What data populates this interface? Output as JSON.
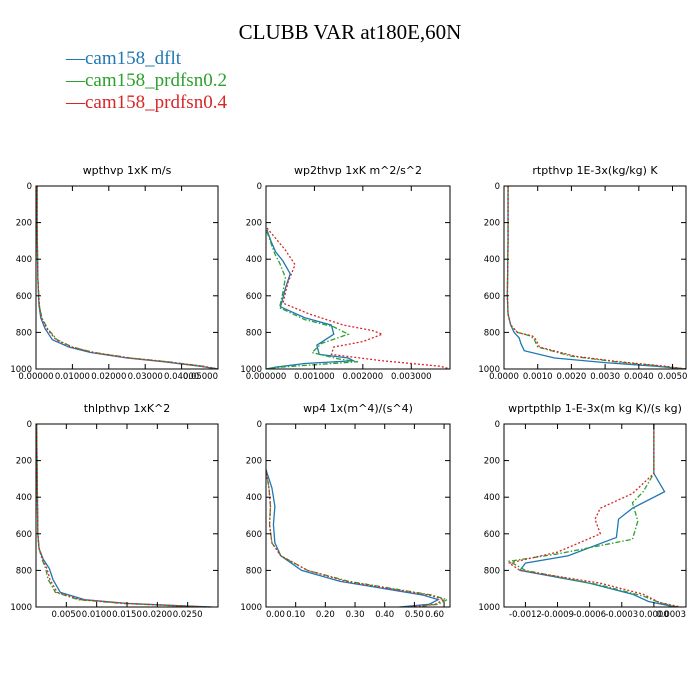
{
  "title": "CLUBB VAR at180E,60N",
  "legend": [
    {
      "name": "cam158_dflt",
      "color": "#1f77b4"
    },
    {
      "name": "cam158_prdfsn0.2",
      "color": "#2ca02c"
    },
    {
      "name": "cam158_prdfsn0.4",
      "color": "#d62728"
    }
  ],
  "chart_data": [
    {
      "type": "line",
      "title": "wpthvp   1xK m/s",
      "xlim": [
        0,
        0.05
      ],
      "ylim": [
        1000,
        0
      ],
      "x_ticks": [
        "0.00000",
        "0.01000",
        "0.02000",
        "0.03000",
        "0.04000",
        "0.05000"
      ],
      "x_tick_values": [
        0,
        0.01,
        0.02,
        0.03,
        0.04,
        0.05
      ],
      "y_ticks": [
        "0",
        "200",
        "400",
        "600",
        "800",
        "1000"
      ],
      "y_tick_values": [
        0,
        200,
        400,
        600,
        800,
        1000
      ],
      "series": [
        {
          "color": "#1f77b4",
          "dash": "solid",
          "x": [
            0.0003,
            0.0003,
            0.0005,
            0.0008,
            0.0013,
            0.0025,
            0.0045,
            0.009,
            0.015,
            0.025,
            0.035,
            0.045,
            0.05
          ],
          "y": [
            0,
            200,
            500,
            650,
            720,
            780,
            840,
            880,
            910,
            940,
            960,
            985,
            1000
          ]
        },
        {
          "color": "#2ca02c",
          "dash": "dashed",
          "x": [
            0.0003,
            0.0003,
            0.0005,
            0.0009,
            0.0016,
            0.0032,
            0.0058,
            0.01,
            0.016,
            0.026,
            0.036,
            0.046,
            0.05
          ],
          "y": [
            0,
            200,
            500,
            650,
            720,
            780,
            840,
            880,
            910,
            940,
            960,
            985,
            1000
          ]
        },
        {
          "color": "#d62728",
          "dash": "dotted",
          "x": [
            0.0003,
            0.0003,
            0.0005,
            0.0009,
            0.0015,
            0.003,
            0.0055,
            0.0098,
            0.0158,
            0.0258,
            0.0358,
            0.0458,
            0.05
          ],
          "y": [
            0,
            200,
            500,
            650,
            720,
            780,
            840,
            880,
            910,
            940,
            960,
            985,
            1000
          ]
        }
      ]
    },
    {
      "type": "line",
      "title": "wp2thvp   1xK m^2/s^2",
      "xlim": [
        0,
        0.0038
      ],
      "ylim": [
        1000,
        0
      ],
      "x_ticks": [
        "0.000000",
        "0.001000",
        "0.002000",
        "0.003000"
      ],
      "x_tick_values": [
        0,
        0.001,
        0.002,
        0.003
      ],
      "y_ticks": [
        "0",
        "200",
        "400",
        "600",
        "800",
        "1000"
      ],
      "y_tick_values": [
        0,
        200,
        400,
        600,
        800,
        1000
      ],
      "series": [
        {
          "color": "#1f77b4",
          "dash": "solid",
          "x": [
            2e-05,
            0.0001,
            0.0002,
            0.00035,
            0.0005,
            0.0004,
            0.0003,
            0.0008,
            0.00135,
            0.0014,
            0.00105,
            0.0011,
            0.0017,
            0.0018,
            0.0008,
            0.0002,
            0
          ],
          "y": [
            240,
            300,
            360,
            410,
            480,
            560,
            660,
            720,
            760,
            810,
            870,
            920,
            940,
            955,
            970,
            990,
            1000
          ]
        },
        {
          "color": "#2ca02c",
          "dash": "dashed",
          "x": [
            2e-05,
            0.0001,
            0.00018,
            0.00028,
            0.0004,
            0.00035,
            0.00028,
            0.0008,
            0.0014,
            0.0017,
            0.00115,
            0.00095,
            0.0015,
            0.0019,
            0.0011,
            0.0003,
            0
          ],
          "y": [
            250,
            310,
            370,
            420,
            500,
            580,
            665,
            730,
            770,
            810,
            860,
            910,
            945,
            960,
            975,
            990,
            1000
          ]
        },
        {
          "color": "#d62728",
          "dash": "dotted",
          "x": [
            2e-05,
            0.00018,
            0.0004,
            0.0006,
            0.00045,
            0.00035,
            0.0009,
            0.0016,
            0.0022,
            0.0024,
            0.002,
            0.0014,
            0.00135,
            0.0024,
            0.0036,
            0.0038
          ],
          "y": [
            230,
            280,
            350,
            430,
            530,
            640,
            700,
            760,
            790,
            810,
            850,
            880,
            920,
            955,
            985,
            1000
          ]
        }
      ]
    },
    {
      "type": "line",
      "title": "rtpthvp   1E-3x(kg/kg) K",
      "xlim": [
        0,
        0.0054
      ],
      "ylim": [
        1000,
        0
      ],
      "x_ticks": [
        "0.0000",
        "0.0010",
        "0.0020",
        "0.0030",
        "0.0040",
        "0.0050"
      ],
      "x_tick_values": [
        0,
        0.001,
        0.002,
        0.003,
        0.004,
        0.005
      ],
      "y_ticks": [
        "0",
        "200",
        "400",
        "600",
        "800",
        "1000"
      ],
      "y_tick_values": [
        0,
        200,
        400,
        600,
        800,
        1000
      ],
      "series": [
        {
          "color": "#1f77b4",
          "dash": "solid",
          "x": [
            0.00012,
            0.00012,
            0.0001,
            0.00012,
            0.0002,
            0.0003,
            0.00045,
            0.0005,
            0.0006,
            0.0015,
            0.003,
            0.0045,
            0.0054
          ],
          "y": [
            0,
            300,
            600,
            700,
            760,
            800,
            830,
            860,
            900,
            940,
            965,
            985,
            1000
          ]
        },
        {
          "color": "#2ca02c",
          "dash": "dashed",
          "x": [
            0.00012,
            0.00012,
            0.0001,
            0.00012,
            0.0002,
            0.0004,
            0.0008,
            0.0009,
            0.001,
            0.002,
            0.0033,
            0.0047,
            0.0054
          ],
          "y": [
            0,
            300,
            600,
            700,
            760,
            800,
            820,
            840,
            880,
            930,
            960,
            985,
            1000
          ]
        },
        {
          "color": "#d62728",
          "dash": "dotted",
          "x": [
            0.00012,
            0.00012,
            0.0001,
            0.00012,
            0.0002,
            0.0004,
            0.00085,
            0.00095,
            0.00105,
            0.0021,
            0.0034,
            0.0048,
            0.0054
          ],
          "y": [
            0,
            300,
            600,
            700,
            760,
            800,
            820,
            840,
            880,
            930,
            960,
            985,
            1000
          ]
        }
      ]
    },
    {
      "type": "line",
      "title": "thlpthvp   1xK^2",
      "xlim": [
        0,
        0.03
      ],
      "ylim": [
        1000,
        0
      ],
      "x_ticks": [
        "0.0050",
        "0.0100",
        "0.0150",
        "0.0200",
        "0.0250"
      ],
      "x_tick_values": [
        0.005,
        0.01,
        0.015,
        0.02,
        0.025
      ],
      "y_ticks": [
        "0",
        "200",
        "400",
        "600",
        "800",
        "1000"
      ],
      "y_tick_values": [
        0,
        200,
        400,
        600,
        800,
        1000
      ],
      "series": [
        {
          "color": "#1f77b4",
          "dash": "solid",
          "x": [
            0.0001,
            0.0002,
            0.0003,
            0.0005,
            0.0012,
            0.0022,
            0.0028,
            0.004,
            0.008,
            0.015,
            0.023,
            0.029
          ],
          "y": [
            0,
            300,
            600,
            680,
            740,
            790,
            850,
            920,
            960,
            980,
            992,
            1000
          ]
        },
        {
          "color": "#2ca02c",
          "dash": "dashed",
          "x": [
            0.0001,
            0.0002,
            0.0003,
            0.0005,
            0.001,
            0.0016,
            0.002,
            0.0032,
            0.007,
            0.014,
            0.022,
            0.028
          ],
          "y": [
            0,
            300,
            600,
            680,
            740,
            790,
            850,
            920,
            960,
            980,
            992,
            1000
          ]
        },
        {
          "color": "#d62728",
          "dash": "dotted",
          "x": [
            0.0001,
            0.0002,
            0.0003,
            0.0005,
            0.0011,
            0.0018,
            0.0023,
            0.0035,
            0.0074,
            0.0145,
            0.0225,
            0.0285
          ],
          "y": [
            0,
            300,
            600,
            680,
            740,
            790,
            850,
            920,
            960,
            980,
            992,
            1000
          ]
        }
      ]
    },
    {
      "type": "line",
      "title": "wp4   1x(m^4)/(s^4)",
      "xlim": [
        0,
        0.62
      ],
      "ylim": [
        1000,
        0
      ],
      "x_ticks": [
        "0.00",
        "0.10",
        "0.20",
        "0.30",
        "0.40",
        "0.50",
        "0.60"
      ],
      "x_tick_values": [
        0,
        0.1,
        0.2,
        0.3,
        0.4,
        0.5,
        0.6
      ],
      "y_ticks": [
        "0",
        "200",
        "400",
        "600",
        "800",
        "1000"
      ],
      "y_tick_values": [
        0,
        200,
        400,
        600,
        800,
        1000
      ],
      "series": [
        {
          "color": "#1f77b4",
          "dash": "solid",
          "x": [
            0.0,
            0.02,
            0.03,
            0.025,
            0.03,
            0.05,
            0.12,
            0.25,
            0.4,
            0.53,
            0.58,
            0.55,
            0.45
          ],
          "y": [
            250,
            350,
            450,
            550,
            650,
            720,
            800,
            860,
            900,
            935,
            960,
            985,
            1000
          ]
        },
        {
          "color": "#2ca02c",
          "dash": "dashed",
          "x": [
            0.0,
            0.01,
            0.015,
            0.012,
            0.02,
            0.05,
            0.14,
            0.28,
            0.43,
            0.56,
            0.61,
            0.58,
            0.5
          ],
          "y": [
            250,
            350,
            450,
            550,
            650,
            720,
            800,
            860,
            900,
            935,
            960,
            985,
            1000
          ]
        },
        {
          "color": "#d62728",
          "dash": "dotted",
          "x": [
            0.0,
            0.01,
            0.015,
            0.012,
            0.02,
            0.05,
            0.14,
            0.27,
            0.42,
            0.55,
            0.6,
            0.57,
            0.48
          ],
          "y": [
            250,
            350,
            450,
            550,
            650,
            720,
            800,
            860,
            900,
            935,
            960,
            985,
            1000
          ]
        }
      ]
    },
    {
      "type": "line",
      "title": "wprtpthlp   1-E-3x(m kg K)/(s kg)",
      "xlim": [
        -0.0014,
        0.0003
      ],
      "ylim": [
        1000,
        0
      ],
      "x_ticks": [
        "-0.0012",
        "-0.0009",
        "-0.0006",
        "-0.0003",
        "0.0000",
        "0.0003"
      ],
      "x_tick_values": [
        -0.0012,
        -0.0009,
        -0.0006,
        -0.0003,
        0,
        0.0003
      ],
      "y_ticks": [
        "0",
        "200",
        "400",
        "600",
        "800",
        "1000"
      ],
      "y_tick_values": [
        0,
        200,
        400,
        600,
        800,
        1000
      ],
      "series": [
        {
          "color": "#1f77b4",
          "dash": "solid",
          "x": [
            0,
            0,
            0.0001,
            -0.0002,
            -0.00033,
            -0.00035,
            -0.0008,
            -0.0012,
            -0.00125,
            -0.0006,
            -0.0002,
            -5e-05,
            0.0002
          ],
          "y": [
            0,
            270,
            370,
            460,
            520,
            620,
            720,
            760,
            800,
            870,
            930,
            970,
            1000
          ]
        },
        {
          "color": "#2ca02c",
          "dash": "dashed",
          "x": [
            0,
            0,
            -0.0001,
            -0.0002,
            -0.00015,
            -0.0002,
            -0.0009,
            -0.00135,
            -0.0012,
            -0.0005,
            -0.0001,
            5e-05,
            0.00022
          ],
          "y": [
            0,
            270,
            370,
            430,
            530,
            630,
            710,
            750,
            800,
            880,
            940,
            975,
            1000
          ]
        },
        {
          "color": "#d62728",
          "dash": "dotted",
          "x": [
            0,
            0,
            -0.0002,
            -0.0005,
            -0.00055,
            -0.0005,
            -0.0009,
            -0.00135,
            -0.00125,
            -0.0005,
            -0.0001,
            5e-05,
            0.00025
          ],
          "y": [
            0,
            270,
            380,
            460,
            520,
            600,
            700,
            760,
            800,
            870,
            930,
            975,
            1000
          ]
        }
      ]
    }
  ]
}
